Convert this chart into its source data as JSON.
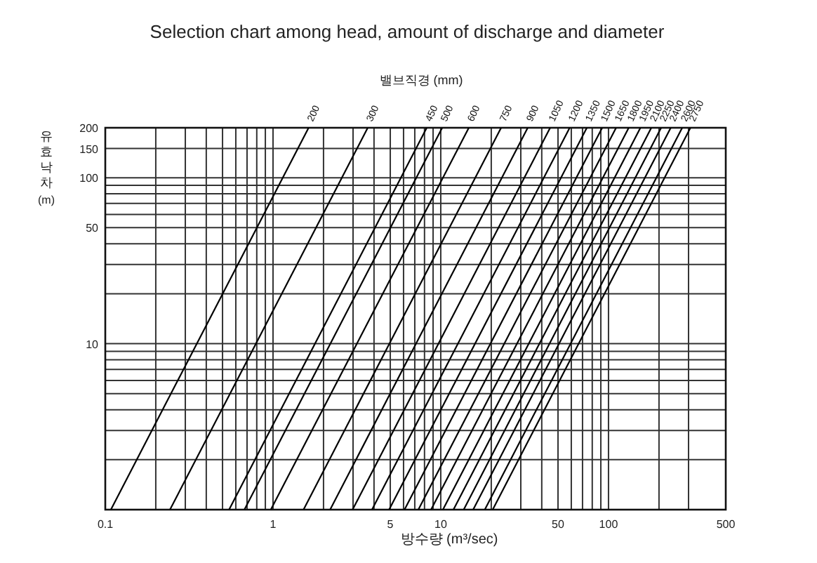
{
  "chart_data": {
    "type": "line",
    "title": "Selection chart among head, amount of discharge and diameter",
    "xlabel": "방수량 (m³/sec)",
    "ylabel": "유효낙차 (m)",
    "annotations": [
      "밸브직경 (mm)"
    ],
    "log": "xy",
    "grid": true,
    "xlim": [
      0.1,
      500
    ],
    "ylim": [
      1,
      200
    ],
    "xticks": [
      0.1,
      {
        "value": 0.2,
        "label": null
      },
      {
        "value": 0.3,
        "label": null
      },
      {
        "value": 0.4,
        "label": null
      },
      {
        "value": 0.5,
        "label": null
      },
      {
        "value": 0.6,
        "label": null
      },
      {
        "value": 0.7,
        "label": null
      },
      {
        "value": 0.8,
        "label": null
      },
      {
        "value": 0.9,
        "label": null
      },
      1,
      {
        "value": 2,
        "label": null
      },
      {
        "value": 3,
        "label": null
      },
      {
        "value": 4,
        "label": null
      },
      5,
      {
        "value": 6,
        "label": null
      },
      {
        "value": 7,
        "label": null
      },
      {
        "value": 8,
        "label": null
      },
      {
        "value": 9,
        "label": null
      },
      10,
      {
        "value": 20,
        "label": null
      },
      {
        "value": 30,
        "label": null
      },
      {
        "value": 40,
        "label": null
      },
      50,
      {
        "value": 60,
        "label": null
      },
      {
        "value": 70,
        "label": null
      },
      {
        "value": 80,
        "label": null
      },
      {
        "value": 90,
        "label": null
      },
      100,
      {
        "value": 200,
        "label": null
      },
      {
        "value": 300,
        "label": null
      },
      500
    ],
    "yticks": [
      {
        "value": 1,
        "label": null
      },
      {
        "value": 2,
        "label": null
      },
      {
        "value": 3,
        "label": null
      },
      {
        "value": 4,
        "label": null
      },
      {
        "value": 5,
        "label": null
      },
      {
        "value": 6,
        "label": null
      },
      {
        "value": 7,
        "label": null
      },
      {
        "value": 8,
        "label": null
      },
      {
        "value": 9,
        "label": null
      },
      10,
      {
        "value": 20,
        "label": null
      },
      {
        "value": 30,
        "label": null
      },
      {
        "value": 40,
        "label": null
      },
      50,
      {
        "value": 60,
        "label": null
      },
      {
        "value": 70,
        "label": null
      },
      {
        "value": 80,
        "label": null
      },
      {
        "value": 90,
        "label": null
      },
      100,
      150,
      200
    ],
    "series": [
      {
        "name": "200",
        "color": "#000000",
        "x": [
          0.108,
          1.63
        ],
        "values": [
          1,
          200
        ]
      },
      {
        "name": "300",
        "color": "#000000",
        "x": [
          0.243,
          3.67
        ],
        "values": [
          1,
          200
        ]
      },
      {
        "name": "450",
        "color": "#000000",
        "x": [
          0.547,
          8.25
        ],
        "values": [
          1,
          200
        ]
      },
      {
        "name": "500",
        "color": "#000000",
        "x": [
          0.675,
          10.2
        ],
        "values": [
          1,
          200
        ]
      },
      {
        "name": "600",
        "color": "#000000",
        "x": [
          0.97,
          14.7
        ],
        "values": [
          1,
          200
        ]
      },
      {
        "name": "750",
        "color": "#000000",
        "x": [
          1.52,
          22.9
        ],
        "values": [
          1,
          200
        ]
      },
      {
        "name": "900",
        "color": "#000000",
        "x": [
          2.19,
          33
        ],
        "values": [
          1,
          200
        ]
      },
      {
        "name": "1050",
        "color": "#000000",
        "x": [
          2.98,
          44.9
        ],
        "values": [
          1,
          200
        ]
      },
      {
        "name": "1200",
        "color": "#000000",
        "x": [
          3.89,
          58.7
        ],
        "values": [
          1,
          200
        ]
      },
      {
        "name": "1350",
        "color": "#000000",
        "x": [
          4.92,
          74.3
        ],
        "values": [
          1,
          200
        ]
      },
      {
        "name": "1500",
        "color": "#000000",
        "x": [
          6.08,
          91.7
        ],
        "values": [
          1,
          200
        ]
      },
      {
        "name": "1650",
        "color": "#000000",
        "x": [
          7.35,
          111
        ],
        "values": [
          1,
          200
        ]
      },
      {
        "name": "1800",
        "color": "#000000",
        "x": [
          8.75,
          132
        ],
        "values": [
          1,
          200
        ]
      },
      {
        "name": "1950",
        "color": "#000000",
        "x": [
          10.3,
          155
        ],
        "values": [
          1,
          200
        ]
      },
      {
        "name": "2100",
        "color": "#000000",
        "x": [
          11.9,
          180
        ],
        "values": [
          1,
          200
        ]
      },
      {
        "name": "2250",
        "color": "#000000",
        "x": [
          13.7,
          206
        ],
        "values": [
          1,
          200
        ]
      },
      {
        "name": "2400",
        "color": "#000000",
        "x": [
          15.6,
          235
        ],
        "values": [
          1,
          200
        ]
      },
      {
        "name": "2600",
        "color": "#000000",
        "x": [
          18.3,
          275
        ],
        "values": [
          1,
          200
        ]
      },
      {
        "name": "2750",
        "color": "#000000",
        "x": [
          20.4,
          308
        ],
        "values": [
          1,
          200
        ]
      }
    ]
  }
}
